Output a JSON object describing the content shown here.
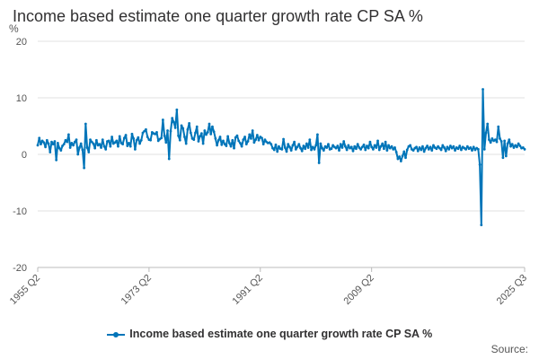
{
  "chart_data": {
    "type": "line",
    "title": "Income based estimate one quarter growth rate CP SA %",
    "ylabel": "%",
    "xlabel": "",
    "ylim": [
      -20,
      20
    ],
    "yticks": [
      20,
      10,
      0,
      -10,
      -20
    ],
    "xticks": [
      "1955 Q2",
      "1973 Q2",
      "1991 Q2",
      "2009 Q2",
      "2025 Q3"
    ],
    "grid": true,
    "legend_position": "bottom",
    "series": [
      {
        "name": "Income based estimate one quarter growth rate CP SA %",
        "color": "#0075b9",
        "start": "1955 Q2",
        "end": "2025 Q3",
        "values": [
          1.6,
          2.9,
          1.8,
          2.4,
          2.1,
          1.3,
          2.5,
          1.9,
          0.4,
          2.2,
          1.8,
          2.3,
          -1.0,
          2.0,
          1.1,
          0.7,
          1.5,
          1.8,
          2.5,
          2.2,
          3.5,
          1.2,
          2.0,
          1.6,
          2.2,
          2.6,
          0.0,
          1.2,
          1.9,
          0.8,
          -2.4,
          5.4,
          1.2,
          0.4,
          2.6,
          2.2,
          1.9,
          1.1,
          2.5,
          1.6,
          1.8,
          1.2,
          2.6,
          1.4,
          0.9,
          2.3,
          2.4,
          1.4,
          3.1,
          1.9,
          2.1,
          2.4,
          1.4,
          3.2,
          2.0,
          1.8,
          2.9,
          3.4,
          1.5,
          2.0,
          1.4,
          3.6,
          2.8,
          0.9,
          2.5,
          3.0,
          1.9,
          2.5,
          3.8,
          4.1,
          4.4,
          3.1,
          2.6,
          2.5,
          3.9,
          3.7,
          3.6,
          3.9,
          2.4,
          2.7,
          2.9,
          6.1,
          3.3,
          2.1,
          4.2,
          -0.8,
          4.1,
          6.4,
          5.7,
          4.7,
          7.9,
          3.3,
          2.5,
          5.1,
          4.6,
          3.1,
          1.9,
          4.4,
          5.5,
          3.8,
          2.8,
          2.6,
          3.8,
          4.9,
          2.3,
          3.2,
          3.7,
          1.9,
          4.2,
          3.5,
          3.9,
          5.4,
          3.6,
          4.9,
          4.0,
          2.8,
          1.6,
          2.5,
          3.1,
          1.7,
          2.4,
          1.8,
          1.5,
          3.2,
          2.0,
          1.4,
          2.5,
          1.1,
          3.0,
          3.3,
          2.4,
          2.0,
          1.4,
          2.6,
          3.1,
          1.8,
          2.3,
          3.5,
          2.8,
          4.2,
          2.1,
          2.6,
          3.4,
          2.5,
          3.1,
          2.9,
          1.8,
          2.6,
          2.2,
          2.0,
          2.1,
          1.8,
          1.1,
          0.8,
          1.7,
          0.5,
          1.4,
          1.0,
          0.9,
          2.7,
          1.2,
          0.5,
          1.8,
          1.3,
          0.7,
          1.6,
          2.2,
          0.9,
          1.3,
          1.8,
          1.1,
          0.6,
          1.5,
          1.0,
          1.9,
          1.2,
          2.6,
          0.8,
          1.3,
          0.9,
          1.6,
          3.5,
          -1.5,
          1.9,
          1.1,
          0.7,
          1.4,
          1.2,
          1.8,
          0.9,
          1.0,
          1.6,
          1.3,
          1.1,
          1.5,
          0.7,
          1.8,
          1.2,
          2.3,
          1.4,
          0.8,
          1.6,
          1.1,
          1.3,
          0.6,
          1.4,
          1.0,
          1.8,
          1.2,
          0.9,
          1.3,
          1.7,
          0.8,
          1.5,
          1.1,
          2.2,
          1.3,
          0.9,
          1.6,
          1.2,
          2.4,
          0.8,
          1.4,
          1.9,
          1.0,
          2.2,
          0.7,
          1.6,
          1.1,
          1.4,
          0.9,
          1.2,
          0.4,
          -0.8,
          -0.4,
          -1.2,
          -0.3,
          0.5,
          -0.6,
          0.8,
          1.4,
          1.6,
          0.9,
          0.7,
          1.1,
          1.3,
          0.6,
          1.2,
          0.8,
          1.4,
          0.5,
          1.1,
          1.5,
          0.9,
          1.3,
          0.7,
          1.6,
          1.2,
          1.0,
          1.4,
          1.1,
          0.8,
          1.6,
          1.2,
          0.6,
          1.3,
          0.9,
          1.5,
          1.1,
          1.4,
          0.7,
          1.2,
          1.0,
          1.5,
          0.8,
          1.3,
          1.1,
          0.9,
          1.4,
          1.0,
          1.2,
          0.7,
          1.3,
          0.8,
          1.1,
          0.9,
          -1.8,
          -12.5,
          11.5,
          0.9,
          3.8,
          5.4,
          2.6,
          2.1,
          2.8,
          2.4,
          2.6,
          2.2,
          4.9,
          2.8,
          2.3,
          -0.6,
          2.4,
          -0.3,
          1.9,
          2.6,
          1.4,
          1.8,
          1.2,
          1.6,
          1.3,
          1.9,
          1.5,
          1.1,
          1.2,
          0.9
        ]
      }
    ],
    "source_label": "Source:"
  }
}
